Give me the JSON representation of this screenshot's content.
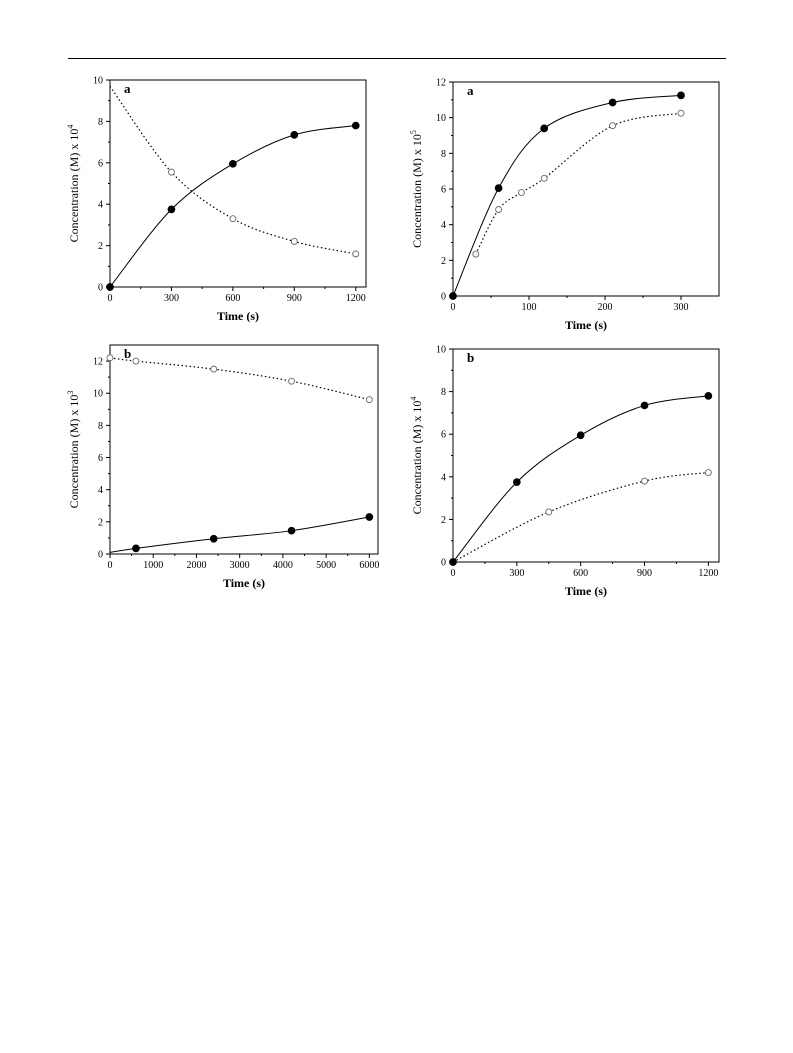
{
  "chart_data": [
    {
      "type": "scatter",
      "panel_label": "a",
      "xlabel": "Time (s)",
      "ylabel": "Concentration (M) x 10",
      "ylabel_exp": "4",
      "xlim": [
        0,
        1250
      ],
      "ylim": [
        0,
        10
      ],
      "xticks": [
        0,
        300,
        600,
        900,
        1200
      ],
      "yticks": [
        0,
        2,
        4,
        6,
        8,
        10
      ],
      "series": [
        {
          "marker": "filled",
          "fit": "solid",
          "x": [
            0,
            300,
            600,
            900,
            1200
          ],
          "y": [
            0,
            3.75,
            5.95,
            7.35,
            7.8
          ]
        },
        {
          "marker": "open",
          "fit": "dotted",
          "x": [
            300,
            600,
            900,
            1200
          ],
          "y": [
            5.55,
            3.3,
            2.2,
            1.6
          ],
          "fit_start": 9.7
        }
      ]
    },
    {
      "type": "scatter",
      "panel_label": "a",
      "xlabel": "Time (s)",
      "ylabel": "Concentration (M) x 10",
      "ylabel_exp": "5",
      "xlim": [
        0,
        350
      ],
      "ylim": [
        0,
        12
      ],
      "xticks": [
        0,
        100,
        200,
        300
      ],
      "yticks": [
        0,
        2,
        4,
        6,
        8,
        10,
        12
      ],
      "series": [
        {
          "marker": "filled",
          "fit": "solid",
          "x": [
            0,
            60,
            120,
            210,
            300
          ],
          "y": [
            0,
            6.05,
            9.4,
            10.85,
            11.25
          ]
        },
        {
          "marker": "open",
          "fit": "dotted",
          "x": [
            30,
            60,
            90,
            120,
            210,
            300
          ],
          "y": [
            2.35,
            4.85,
            5.8,
            6.6,
            9.55,
            10.25
          ]
        }
      ]
    },
    {
      "type": "scatter",
      "panel_label": "b",
      "xlabel": "Time (s)",
      "ylabel": "Concentration (M) x 10",
      "ylabel_exp": "3",
      "xlim": [
        0,
        6200
      ],
      "ylim": [
        0,
        13
      ],
      "xticks": [
        0,
        1000,
        2000,
        3000,
        4000,
        5000,
        6000
      ],
      "yticks": [
        0,
        2,
        4,
        6,
        8,
        10,
        12
      ],
      "series": [
        {
          "marker": "filled",
          "fit": "solid",
          "x": [
            600,
            2400,
            4200,
            6000
          ],
          "y": [
            0.35,
            0.95,
            1.45,
            2.3
          ],
          "fit_start": 0.1
        },
        {
          "marker": "open",
          "fit": "dotted",
          "x": [
            0,
            600,
            2400,
            4200,
            6000
          ],
          "y": [
            12.2,
            12.0,
            11.5,
            10.75,
            9.6
          ]
        }
      ]
    },
    {
      "type": "scatter",
      "panel_label": "b",
      "xlabel": "Time (s)",
      "ylabel": "Concentration (M) x 10",
      "ylabel_exp": "4",
      "xlim": [
        0,
        1250
      ],
      "ylim": [
        0,
        10
      ],
      "xticks": [
        0,
        300,
        600,
        900,
        1200
      ],
      "yticks": [
        0,
        2,
        4,
        6,
        8,
        10
      ],
      "series": [
        {
          "marker": "filled",
          "fit": "solid",
          "x": [
            0,
            300,
            600,
            900,
            1200
          ],
          "y": [
            0,
            3.75,
            5.95,
            7.35,
            7.8
          ]
        },
        {
          "marker": "open",
          "fit": "dotted",
          "x": [
            450,
            900,
            1200
          ],
          "y": [
            2.35,
            3.8,
            4.2
          ],
          "fit_start": 0
        }
      ]
    }
  ]
}
